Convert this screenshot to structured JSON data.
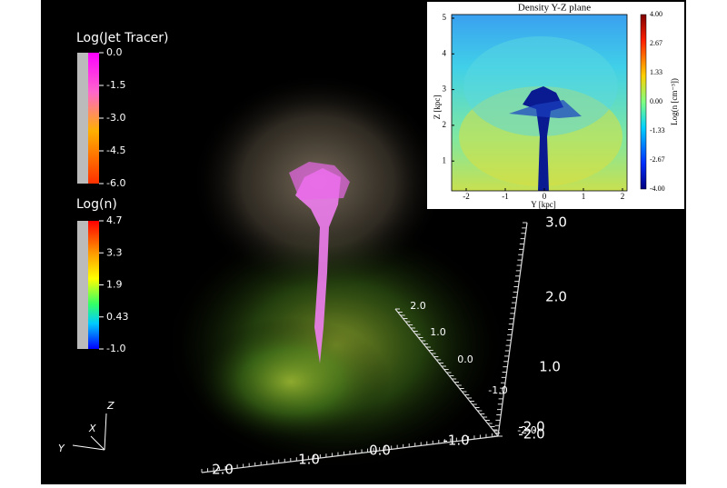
{
  "colorbars": [
    {
      "title": "Log(Jet Tracer)",
      "ticks": [
        "0.0",
        "-1.5",
        "-3.0",
        "-4.5",
        "-6.0"
      ]
    },
    {
      "title": "Log(n)",
      "ticks": [
        "4.7",
        "3.3",
        "1.9",
        "0.43",
        "-1.0"
      ]
    }
  ],
  "triad": {
    "z": "Z",
    "x": "X",
    "y": "Y"
  },
  "axes3d": {
    "vertical": [
      "3.0",
      "2.0",
      "1.0",
      "-2.0"
    ],
    "diagonal": [
      "2.0",
      "1.0",
      "0.0",
      "-1.0",
      "-2.0"
    ],
    "bottom": [
      "2.0",
      "1.0",
      "0.0",
      "-1.0",
      "-2.0"
    ]
  },
  "inset": {
    "title": "Density Y-Z plane",
    "y_label": "Z [kpc]",
    "x_label": "Y [kpc]",
    "y_ticks": [
      "5",
      "4",
      "3",
      "2",
      "1"
    ],
    "x_ticks": [
      "-2",
      "-1",
      "0",
      "1",
      "2"
    ],
    "colorbar_label": "Log(n [cm⁻³])",
    "colorbar_ticks": [
      "4.00",
      "2.67",
      "1.33",
      "0.00",
      "-1.33",
      "-2.67",
      "-4.00"
    ]
  }
}
